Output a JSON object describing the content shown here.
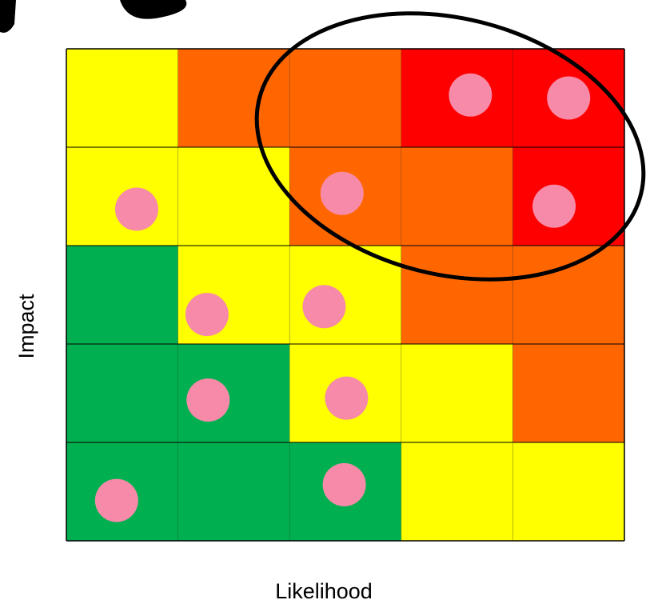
{
  "chart_data": {
    "type": "heatmap",
    "title": "",
    "xlabel": "Likelihood",
    "ylabel": "Impact",
    "grid_rows": 5,
    "grid_cols": 5,
    "cells": [
      [
        "yellow",
        "orange",
        "orange",
        "red",
        "red"
      ],
      [
        "yellow",
        "yellow",
        "orange",
        "orange",
        "red"
      ],
      [
        "green",
        "yellow",
        "yellow",
        "orange",
        "orange"
      ],
      [
        "green",
        "green",
        "yellow",
        "yellow",
        "orange"
      ],
      [
        "green",
        "green",
        "green",
        "yellow",
        "yellow"
      ]
    ],
    "colors": {
      "green": "#00b050",
      "yellow": "#ffff00",
      "orange": "#ff6600",
      "red": "#ff0000",
      "risk_marker": "#f78aa8",
      "highlight_outline": "#000000"
    },
    "risks": [
      {
        "likelihood": 4,
        "impact": 5
      },
      {
        "likelihood": 5,
        "impact": 5
      },
      {
        "likelihood": 1,
        "impact": 4
      },
      {
        "likelihood": 3,
        "impact": 4
      },
      {
        "likelihood": 5,
        "impact": 4
      },
      {
        "likelihood": 2,
        "impact": 3
      },
      {
        "likelihood": 3,
        "impact": 3
      },
      {
        "likelihood": 2,
        "impact": 2
      },
      {
        "likelihood": 3,
        "impact": 2
      },
      {
        "likelihood": 1,
        "impact": 1
      },
      {
        "likelihood": 3,
        "impact": 1
      }
    ],
    "highlight": {
      "shape": "ellipse",
      "region": "high-likelihood-high-impact"
    }
  }
}
